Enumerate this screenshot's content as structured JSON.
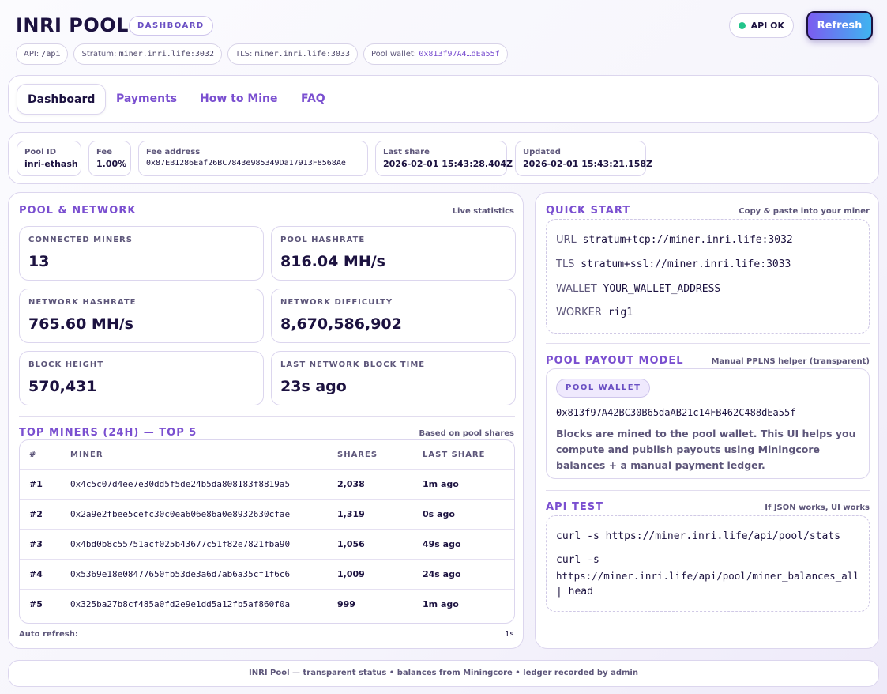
{
  "header": {
    "brand": "INRI POOL",
    "tag": "DASHBOARD",
    "chips": [
      {
        "label": "API:",
        "value": "/api"
      },
      {
        "label": "Stratum:",
        "value": "miner.inri.life:3032"
      },
      {
        "label": "TLS:",
        "value": "miner.inri.life:3033"
      },
      {
        "label": "Pool wallet:",
        "value": "0x813f97A4…dEa55f"
      }
    ],
    "api_status": "API OK",
    "refresh_label": "Refresh"
  },
  "tabs": [
    {
      "label": "Dashboard",
      "active": true
    },
    {
      "label": "Payments"
    },
    {
      "label": "How to Mine"
    },
    {
      "label": "FAQ"
    }
  ],
  "info": {
    "pool_id_label": "Pool ID",
    "pool_id": "inri-ethash",
    "fee_label": "Fee",
    "fee": "1.00%",
    "fee_address_label": "Fee address",
    "fee_address": "0x87EB1286Eaf26BC7843e985349Da17913F8568Ae",
    "last_share_label": "Last share",
    "last_share": "2026-02-01 15:43:28.404Z",
    "updated_label": "Updated",
    "updated": "2026-02-01 15:43:21.158Z"
  },
  "pool_network": {
    "title": "POOL & NETWORK",
    "note": "Live statistics",
    "stats": [
      {
        "label": "CONNECTED MINERS",
        "value": "13"
      },
      {
        "label": "POOL HASHRATE",
        "value": "816.04 MH/s"
      },
      {
        "label": "NETWORK HASHRATE",
        "value": "765.60 MH/s"
      },
      {
        "label": "NETWORK DIFFICULTY",
        "value": "8,670,586,902"
      },
      {
        "label": "BLOCK HEIGHT",
        "value": "570,431"
      },
      {
        "label": "LAST NETWORK BLOCK TIME",
        "value": "23s ago"
      }
    ]
  },
  "top_miners": {
    "title": "TOP MINERS (24H) — TOP 5",
    "note": "Based on pool shares",
    "columns": [
      "#",
      "MINER",
      "SHARES",
      "LAST SHARE"
    ],
    "rows": [
      {
        "rank": "#1",
        "miner": "0x4c5c07d4ee7e30dd5f5de24b5da808183f8819a5",
        "shares": "2,038",
        "last": "1m ago"
      },
      {
        "rank": "#2",
        "miner": "0x2a9e2fbee5cefc30c0ea606e86a0e8932630cfae",
        "shares": "1,319",
        "last": "0s ago"
      },
      {
        "rank": "#3",
        "miner": "0x4bd0b8c55751acf025b43677c51f82e7821fba90",
        "shares": "1,056",
        "last": "49s ago"
      },
      {
        "rank": "#4",
        "miner": "0x5369e18e08477650fb53de3a6d7ab6a35cf1f6c6",
        "shares": "1,009",
        "last": "24s ago"
      },
      {
        "rank": "#5",
        "miner": "0x325ba27b8cf485a0fd2e9e1dd5a12fb5af860f0a",
        "shares": "999",
        "last": "1m ago"
      }
    ],
    "auto_refresh_label": "Auto refresh:",
    "auto_refresh_value": "1s"
  },
  "quick_start": {
    "title": "QUICK START",
    "note": "Copy & paste into your miner",
    "lines": [
      {
        "key": "URL",
        "value": "stratum+tcp://miner.inri.life:3032"
      },
      {
        "key": "TLS",
        "value": "stratum+ssl://miner.inri.life:3033"
      },
      {
        "key": "WALLET",
        "value": "YOUR_WALLET_ADDRESS"
      },
      {
        "key": "WORKER",
        "value": "rig1"
      }
    ]
  },
  "payout_model": {
    "title": "POOL PAYOUT MODEL",
    "note": "Manual PPLNS helper (transparent)",
    "pill": "POOL WALLET",
    "wallet": "0x813f97A42BC30B65daAB21c14FB462C488dEa55f",
    "description": "Blocks are mined to the pool wallet. This UI helps you compute and publish payouts using Miningcore balances + a manual payment ledger."
  },
  "api_test": {
    "title": "API TEST",
    "note": "If JSON works, UI works",
    "cmd1": "curl -s https://miner.inri.life/api/pool/stats",
    "cmd2_a": "curl -s",
    "cmd2_b": "https://miner.inri.life/api/pool/miner_balances_all",
    "cmd2_c": "| head"
  },
  "footer": "INRI Pool — transparent status • balances from Miningcore • ledger recorded by admin",
  "colors": {
    "accent": "#7a4fd0",
    "text": "#1c1240",
    "ok": "#22c48a"
  }
}
